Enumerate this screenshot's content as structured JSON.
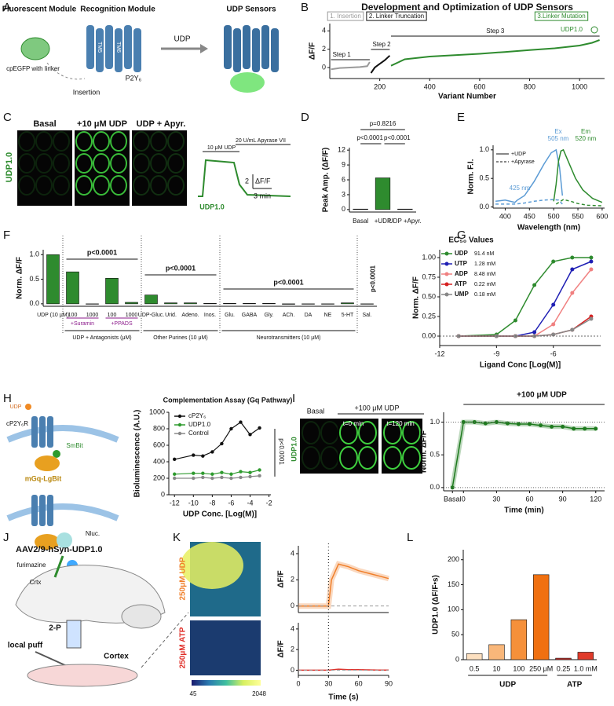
{
  "panels": [
    "A",
    "B",
    "C",
    "D",
    "E",
    "F",
    "G",
    "H",
    "I",
    "J",
    "K",
    "L"
  ],
  "illustrations": {
    "A": {
      "fluorescent_module": "Fluorescent Module",
      "linker": "cpEGFP with linker",
      "recognition_module": "Recognition Module",
      "tm5": "TM5",
      "tm6": "TM6",
      "receptor": "P2Y₆",
      "ligand": "UDP",
      "insertion": "Insertion",
      "sensors": "UDP Sensors"
    },
    "C": {
      "basal": "Basal",
      "udp": "+10 μM UDP",
      "apyr": "UDP + Apyr.",
      "sensor": "UDP1.0",
      "udp_bar": "10 μM UDP",
      "apyrase_bar": "20 U/mL Apyrase VII",
      "scale_y": "2",
      "scale_y_unit": "ΔF/F",
      "scale_x": "3 min",
      "trace_label": "UDP1.0"
    },
    "H": {
      "ligand": "UDP",
      "receptor": "cP2Y₆R",
      "smbit": "SmBit",
      "lgbit": "mGq-LgBit",
      "nluc": "Nluc.",
      "substrate": "furimazine"
    },
    "I": {
      "basal": "Basal",
      "udp": "+100 μM UDP",
      "t0": "t=0 min",
      "t120": "t=120 min",
      "sensor": "UDP1.0"
    },
    "J": {
      "virus": "AAV2/9-hSyn-UDP1.0",
      "crtx": "Crtx",
      "two_p": "2-P",
      "puff": "local puff",
      "cortex": "Cortex"
    },
    "K": {
      "udp": "250μM UDP",
      "atp": "250μM ATP",
      "cmin": 45,
      "cmax": 2048
    }
  },
  "chart_data": [
    {
      "type": "line",
      "title": "Development and Optimization of UDP Sensors",
      "xlabel": "Variant Number",
      "ylabel": "ΔF/F",
      "xlim": [
        0,
        1100
      ],
      "xticks": [
        200,
        400,
        600,
        800,
        1000
      ],
      "ylim": [
        -1.2,
        4.8
      ],
      "yticks": [
        0,
        2,
        4
      ],
      "series": [
        {
          "name": "1. Insertion",
          "color": "#9a9a9a",
          "x": [
            5,
            40,
            80,
            120,
            150,
            160
          ],
          "values": [
            -0.2,
            -0.05,
            0,
            0.05,
            0.15,
            0.6
          ]
        },
        {
          "name": "2. Linker Truncation",
          "color": "#111111",
          "x": [
            165,
            180,
            200,
            220,
            240
          ],
          "values": [
            -0.6,
            0,
            0.4,
            0.8,
            1.3
          ]
        },
        {
          "name": "3.Linker Mutation",
          "color": "#2e8b2e",
          "x": [
            245,
            300,
            400,
            500,
            600,
            700,
            800,
            900,
            1000,
            1050,
            1080
          ],
          "values": [
            0.2,
            0.9,
            1.2,
            1.35,
            1.5,
            1.7,
            1.9,
            2.1,
            2.4,
            2.7,
            3.0
          ]
        }
      ],
      "annotations": [
        "Step 1",
        "Step 2",
        "Step 3",
        "UDP1.0"
      ]
    },
    {
      "type": "bar",
      "ylabel": "Peak Amp. (ΔF/F)",
      "categories": [
        "Basal",
        "+UDP",
        "UDP +Apyr."
      ],
      "values": [
        0.1,
        6.4,
        0.1
      ],
      "colors": [
        "#555555",
        "#2e8b2e",
        "#555555"
      ],
      "ylim": [
        -0.5,
        12.5
      ],
      "yticks": [
        0,
        3,
        6,
        9,
        12
      ],
      "annotations": [
        "p=0.8216",
        "p<0.0001",
        "p<0.0001"
      ]
    },
    {
      "type": "line",
      "ylabel": "Norm. F.I.",
      "xlabel": "Wavelength (nm)",
      "xlim": [
        375,
        605
      ],
      "xticks": [
        400,
        450,
        500,
        550,
        600
      ],
      "ylim": [
        -0.02,
        1.08
      ],
      "yticks": [
        {
          "value": 0,
          "label": "0.0"
        },
        {
          "value": 0.5,
          "label": "0.5"
        },
        {
          "value": 1,
          "label": "1.0"
        }
      ],
      "legend": [
        {
          "label": "+UDP",
          "dash": false
        },
        {
          "label": "+Apyrase",
          "dash": true
        }
      ],
      "series": [
        {
          "color": "#5b9bd5",
          "dash": false,
          "x": [
            380,
            400,
            420,
            425,
            440,
            460,
            480,
            495,
            505,
            512,
            518
          ],
          "values": [
            0.1,
            0.12,
            0.08,
            0.12,
            0.2,
            0.45,
            0.75,
            0.95,
            1.0,
            0.7,
            0.2
          ]
        },
        {
          "color": "#2e8b2e",
          "dash": false,
          "x": [
            500,
            505,
            510,
            515,
            520,
            530,
            545,
            560,
            580,
            600
          ],
          "values": [
            0.1,
            0.4,
            0.8,
            0.98,
            1.0,
            0.8,
            0.5,
            0.3,
            0.15,
            0.08
          ]
        },
        {
          "color": "#5b9bd5",
          "dash": true,
          "x": [
            380,
            420,
            440,
            460,
            480,
            500,
            510,
            518
          ],
          "values": [
            0.05,
            0.05,
            0.07,
            0.1,
            0.12,
            0.13,
            0.12,
            0.05
          ]
        },
        {
          "color": "#2e8b2e",
          "dash": true,
          "x": [
            505,
            520,
            535,
            550,
            570,
            600
          ],
          "values": [
            0.05,
            0.13,
            0.1,
            0.06,
            0.03,
            0.02
          ]
        }
      ],
      "annotations": [
        "Ex",
        "505 nm",
        "Em",
        "520 nm",
        "425 nm"
      ]
    },
    {
      "type": "bar",
      "ylabel": "Norm. ΔF/F",
      "color": "#2e8b2e",
      "categories": [
        "UDP (10 μM)",
        "100",
        "1000",
        "100",
        "1000",
        "UDP-Gluc.",
        "Urid.",
        "Adeno.",
        "Inos.",
        "Glu.",
        "GABA",
        "Gly.",
        "ACh.",
        "DA",
        "NE",
        "5-HT",
        "Sal."
      ],
      "values": [
        1.0,
        0.65,
        0.0,
        0.52,
        0.03,
        0.18,
        0.02,
        0.02,
        0.01,
        0.01,
        0.01,
        0.01,
        -0.01,
        0.0,
        0.0,
        0.02,
        0.0
      ],
      "ylim": [
        -0.05,
        1.1
      ],
      "yticks": [
        {
          "value": 0,
          "label": "0.0"
        },
        {
          "value": 0.5,
          "label": "0.5"
        },
        {
          "value": 1,
          "label": "1.0"
        }
      ],
      "sublabels": [
        "+Suramin",
        "+PPADS"
      ],
      "group_labels": [
        "UDP + Antagonists (μM)",
        "Other Purines (10 μM)",
        "Neurotransmitters (10 μM)"
      ],
      "annotations": [
        "p<0.0001",
        "p<0.0001",
        "p<0.0001",
        "p<0.0001"
      ]
    },
    {
      "type": "line",
      "title": "EC₅₀ Values",
      "ylabel": "Norm. ΔF/F",
      "xlabel": "Ligand Conc [Log(M)]",
      "xlim": [
        -12,
        -3.5
      ],
      "xticks": [
        -12,
        -9,
        -6
      ],
      "ylim": [
        -0.12,
        1.1
      ],
      "yticks": [
        {
          "value": 0,
          "label": "0.00"
        },
        {
          "value": 0.25,
          "label": "0.25"
        },
        {
          "value": 0.5,
          "label": "0.50"
        },
        {
          "value": 0.75,
          "label": "0.75"
        },
        {
          "value": 1,
          "label": "1.00"
        }
      ],
      "x": [
        -11,
        -9,
        -8,
        -7,
        -6,
        -5,
        -4
      ],
      "series": [
        {
          "name": "UDP",
          "color": "#2e8b2e",
          "values": [
            0,
            0.02,
            0.2,
            0.65,
            0.95,
            1.0,
            1.0
          ]
        },
        {
          "name": "UTP",
          "color": "#1f1fb4",
          "values": [
            0,
            0,
            0,
            0.05,
            0.4,
            0.85,
            0.95
          ]
        },
        {
          "name": "ADP",
          "color": "#f08080",
          "values": [
            0,
            0,
            0,
            0,
            0.15,
            0.55,
            0.85
          ]
        },
        {
          "name": "ATP",
          "color": "#d62020",
          "values": [
            0,
            0,
            0,
            0,
            0.02,
            0.08,
            0.25
          ]
        },
        {
          "name": "UMP",
          "color": "#888888",
          "values": [
            0,
            0,
            0,
            0,
            0.02,
            0.08,
            0.22
          ]
        }
      ],
      "ec50_labels": [
        "91.4 nM",
        "1.28 mM",
        "8.48 mM",
        "0.22 mM",
        "0.18 mM"
      ]
    },
    {
      "type": "line",
      "title": "Complementation Assay (Gq Pathway)",
      "ylabel": "Bioluminescence (A.U.)",
      "xlabel": "UDP Conc. [Log(M)]",
      "xlim": [
        -12.6,
        -1.8
      ],
      "xticks": [
        -12,
        -10,
        -8,
        -6,
        -4,
        -2
      ],
      "ylim": [
        0,
        1000
      ],
      "yticks": [
        0,
        200,
        400,
        600,
        800,
        1000
      ],
      "x": [
        -12,
        -10,
        -9,
        -8,
        -7,
        -6,
        -5,
        -4,
        -3
      ],
      "series": [
        {
          "name": "cP2Y₆",
          "color": "#111111",
          "values": [
            430,
            480,
            470,
            520,
            620,
            800,
            880,
            730,
            810
          ]
        },
        {
          "name": "UDP1.0",
          "color": "#2e9b2e",
          "values": [
            250,
            260,
            260,
            250,
            270,
            250,
            280,
            270,
            300
          ]
        },
        {
          "name": "Control",
          "color": "#888888",
          "values": [
            200,
            200,
            210,
            200,
            210,
            200,
            210,
            220,
            230
          ]
        }
      ],
      "annotations": [
        "p<0.0001"
      ]
    },
    {
      "type": "line",
      "title": "+100 μM UDP",
      "ylabel": "Norm. ΔF/F",
      "xlabel": "Time (min)",
      "xlim": [
        -18,
        128
      ],
      "xticks": [
        {
          "value": -10,
          "label": "Basal"
        },
        0,
        30,
        60,
        90,
        120
      ],
      "ylim": [
        -0.05,
        1.15
      ],
      "yticks": [
        {
          "value": 0,
          "label": "0.0"
        },
        {
          "value": 0.5,
          "label": "0.5"
        },
        {
          "value": 1,
          "label": "1.0"
        }
      ],
      "series": [
        {
          "color": "#1e7a1e",
          "x": [
            -10,
            0,
            10,
            20,
            30,
            40,
            50,
            60,
            70,
            80,
            90,
            100,
            110,
            120
          ],
          "values": [
            0,
            1,
            1,
            0.98,
            1,
            0.98,
            0.97,
            0.97,
            0.95,
            0.93,
            0.93,
            0.9,
            0.9,
            0.9
          ]
        }
      ]
    },
    {
      "type": "line",
      "ylabel": "ΔF/F",
      "xlim": [
        0,
        90
      ],
      "ylim": [
        -0.5,
        4.6
      ],
      "yticks": [
        0,
        2,
        4
      ],
      "series": [
        {
          "color": "#f07f2a",
          "x": [
            0,
            29,
            30,
            33,
            40,
            50,
            60,
            70,
            80,
            90
          ],
          "values": [
            0,
            0,
            0,
            2,
            3.2,
            3.0,
            2.7,
            2.5,
            2.3,
            2.1
          ]
        }
      ]
    },
    {
      "type": "line",
      "ylabel": "ΔF/F",
      "xlabel": "Time (s)",
      "xlim": [
        0,
        90
      ],
      "xticks": [
        0,
        30,
        60,
        90
      ],
      "ylim": [
        -0.5,
        4.6
      ],
      "yticks": [
        0,
        2,
        4
      ],
      "series": [
        {
          "color": "#e0302a",
          "x": [
            0,
            29,
            30,
            40,
            50,
            60,
            70,
            80,
            90
          ],
          "values": [
            0,
            0,
            0,
            0.1,
            0.05,
            0.05,
            0.03,
            0.02,
            0.02
          ]
        }
      ]
    },
    {
      "type": "bar",
      "ylabel": "UDP1.0 (ΔF/F•s)",
      "categories": [
        "0.5",
        "10",
        "100",
        "250 μM",
        "0.25",
        "1.0 mM"
      ],
      "values": [
        12,
        30,
        80,
        170,
        3,
        15
      ],
      "colors": [
        "#fde0c0",
        "#f9b77a",
        "#f5903a",
        "#f07010",
        "#d0302a",
        "#e03a2a"
      ],
      "ylim": [
        0,
        220
      ],
      "yticks": [
        0,
        50,
        100,
        150,
        200
      ],
      "group_labels": [
        "UDP",
        "ATP"
      ]
    }
  ]
}
